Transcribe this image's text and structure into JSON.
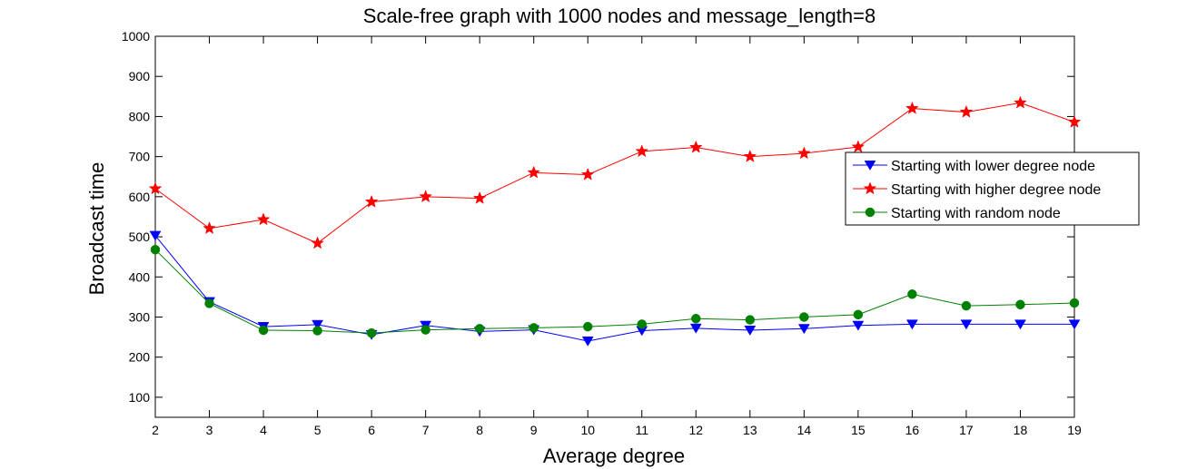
{
  "chart_data": {
    "type": "line",
    "title": "Scale-free graph with 1000 nodes and message_length=8",
    "xlabel": "Average degree",
    "ylabel": "Broadcast time",
    "xlim": [
      2,
      19
    ],
    "ylim": [
      50,
      1000
    ],
    "xticks": [
      2,
      3,
      4,
      5,
      6,
      7,
      8,
      9,
      10,
      11,
      12,
      13,
      14,
      15,
      16,
      17,
      18,
      19
    ],
    "yticks": [
      100,
      200,
      300,
      400,
      500,
      600,
      700,
      800,
      900,
      1000
    ],
    "legend_position": "right",
    "x": [
      2,
      3,
      4,
      5,
      6,
      7,
      8,
      9,
      10,
      11,
      12,
      13,
      14,
      15,
      16,
      17,
      18,
      19
    ],
    "series": [
      {
        "name": "Starting with lower degree node",
        "color": "#0000ff",
        "marker": "triangle-down",
        "values": [
          503,
          338,
          276,
          281,
          256,
          279,
          264,
          268,
          240,
          266,
          272,
          267,
          271,
          279,
          282,
          282,
          282,
          282
        ]
      },
      {
        "name": "Starting with higher degree node",
        "color": "#ff0000",
        "marker": "star",
        "values": [
          620,
          521,
          543,
          484,
          587,
          600,
          596,
          660,
          655,
          713,
          723,
          700,
          708,
          724,
          820,
          811,
          834,
          786
        ]
      },
      {
        "name": "Starting with random node",
        "color": "#008000",
        "marker": "circle",
        "values": [
          468,
          334,
          267,
          266,
          260,
          268,
          271,
          273,
          276,
          282,
          296,
          293,
          300,
          306,
          357,
          328,
          331,
          335
        ]
      }
    ]
  }
}
